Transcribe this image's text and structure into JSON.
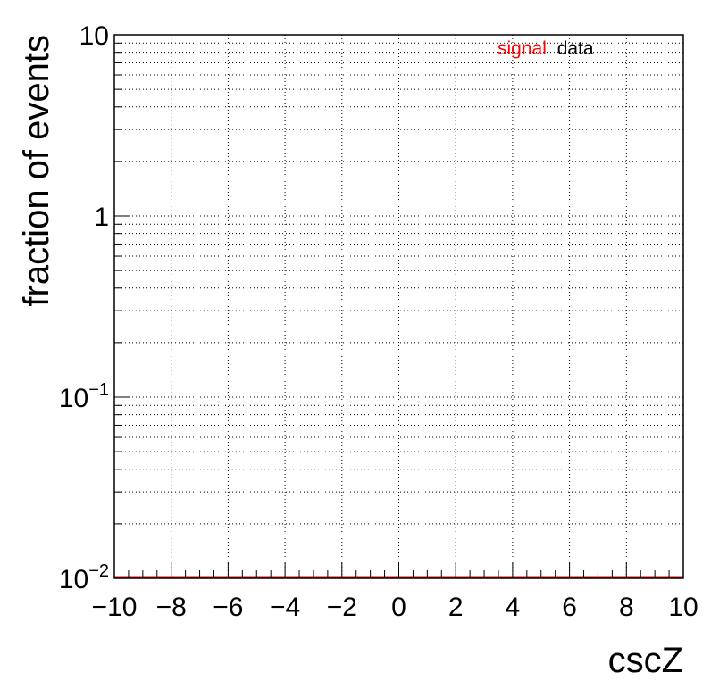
{
  "chart_data": {
    "type": "line",
    "title": "",
    "xlabel": "cscZ",
    "ylabel": "fraction of events",
    "xlim": [
      -10,
      10
    ],
    "ylim": [
      0.01,
      10
    ],
    "yscale": "log",
    "grid": true,
    "x_ticks": [
      -10,
      -8,
      -6,
      -4,
      -2,
      0,
      2,
      4,
      6,
      8,
      10
    ],
    "x_tick_labels": [
      "−10",
      "−8",
      "−6",
      "−4",
      "−2",
      "0",
      "2",
      "4",
      "6",
      "8",
      "10"
    ],
    "y_ticks": [
      {
        "value": 10,
        "base": "10",
        "exp": ""
      },
      {
        "value": 1,
        "base": "1",
        "exp": ""
      },
      {
        "value": 0.1,
        "base": "10",
        "exp": "−1"
      },
      {
        "value": 0.01,
        "base": "10",
        "exp": "−2"
      }
    ],
    "legend_position": "top-right",
    "legend": [
      {
        "label": "signal",
        "color": "#ff0000"
      },
      {
        "label": "data",
        "color": "#000000"
      }
    ],
    "series": [
      {
        "name": "signal",
        "color": "#ff0000",
        "x": [
          -10,
          10
        ],
        "y": [
          0.01,
          0.01
        ]
      },
      {
        "name": "data",
        "color": "#000000",
        "x": [],
        "y": []
      }
    ]
  }
}
